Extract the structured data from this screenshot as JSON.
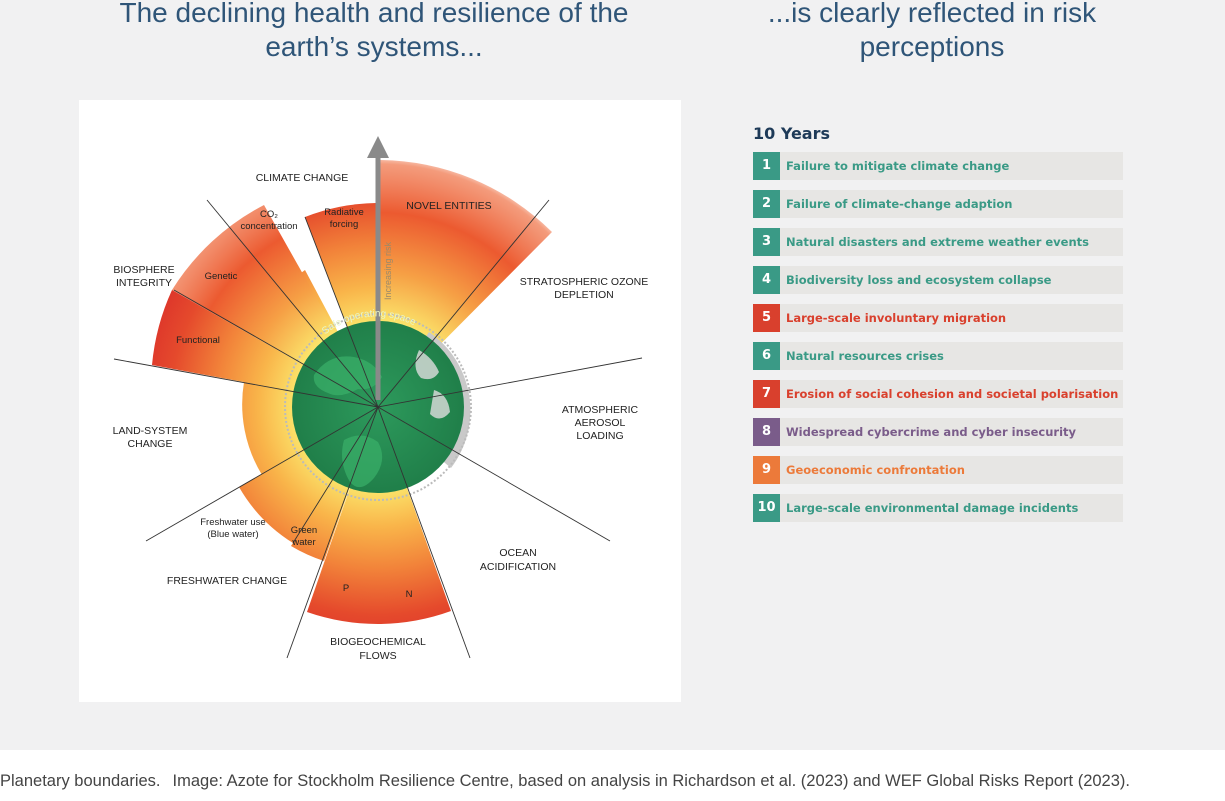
{
  "headings": {
    "left": "The declining health and resilience of the earth’s systems...",
    "right": "...is clearly reflected in risk perceptions"
  },
  "diagram": {
    "labels": {
      "climate_change": "CLIMATE CHANGE",
      "co2_1": "CO₂",
      "co2_2": "concentration",
      "radiative_1": "Radiative",
      "radiative_2": "forcing",
      "novel_entities": "NOVEL ENTITIES",
      "ozone_1": "STRATOSPHERIC OZONE",
      "ozone_2": "DEPLETION",
      "aerosol_1": "ATMOSPHERIC",
      "aerosol_2": "AEROSOL",
      "aerosol_3": "LOADING",
      "ocean_1": "OCEAN",
      "ocean_2": "ACIDIFICATION",
      "biogeo_1": "BIOGEOCHEMICAL",
      "biogeo_2": "FLOWS",
      "n": "N",
      "p": "P",
      "freshwater_change": "FRESHWATER CHANGE",
      "blue_1": "Freshwater use",
      "blue_2": "(Blue water)",
      "green_1": "Green",
      "green_2": "water",
      "land_1": "LAND-SYSTEM",
      "land_2": "CHANGE",
      "bio_1": "BIOSPHERE",
      "bio_2": "INTEGRITY",
      "genetic": "Genetic",
      "functional": "Functional",
      "safe_space": "Safe operating space",
      "increasing_risk": "Increasing risk"
    }
  },
  "risks": {
    "title": "10 Years",
    "items": [
      {
        "num": "1",
        "label": "Failure to mitigate climate change",
        "color": "#3a9a86"
      },
      {
        "num": "2",
        "label": "Failure of climate-change adaption",
        "color": "#3a9a86"
      },
      {
        "num": "3",
        "label": "Natural disasters and extreme weather events",
        "color": "#3a9a86"
      },
      {
        "num": "4",
        "label": "Biodiversity loss and ecosystem collapse",
        "color": "#3a9a86"
      },
      {
        "num": "5",
        "label": "Large-scale involuntary migration",
        "color": "#d9402d"
      },
      {
        "num": "6",
        "label": "Natural resources crises",
        "color": "#3a9a86"
      },
      {
        "num": "7",
        "label": "Erosion of social cohesion and societal polarisation",
        "color": "#d9402d"
      },
      {
        "num": "8",
        "label": "Widespread cybercrime and cyber insecurity",
        "color": "#7a5c8a"
      },
      {
        "num": "9",
        "label": "Geoeconomic confrontation",
        "color": "#ec7a3a"
      },
      {
        "num": "10",
        "label": "Large-scale environmental damage incidents",
        "color": "#3a9a86"
      }
    ]
  },
  "caption": {
    "title": "Planetary boundaries.",
    "credit": "Image: Azote for Stockholm Resilience Centre, based on analysis in Richardson et al. (2023) and WEF Global Risks Report (2023)."
  }
}
